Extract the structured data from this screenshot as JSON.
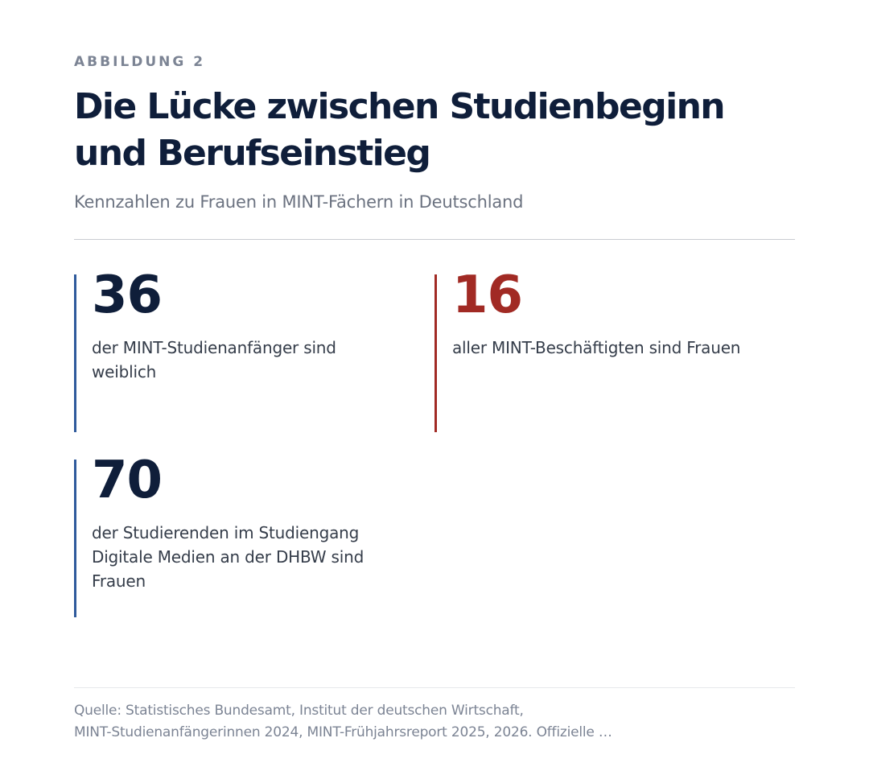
{
  "figure": {
    "eyebrow": "ABBILDUNG 2",
    "title": "Die Lücke zwischen Studienbeginn und Berufseinstieg",
    "subtitle": "Kennzahlen zu Frauen in MINT-Fächern in Deutschland"
  },
  "stats": [
    {
      "value": "36",
      "label": "der MINT-Studienanfänger sind weiblich",
      "accent_color": "#2f5a9c"
    },
    {
      "value": "16",
      "label": "aller MINT-Beschäftigten sind Frauen",
      "accent_color": "#a12a24"
    },
    {
      "value": "70",
      "label": "der Studierenden im Studiengang Digitale Medien an der DHBW sind Frauen",
      "accent_color": "#2f5a9c"
    }
  ],
  "source": {
    "line1": "Quelle: Statistisches Bundesamt, Institut der deutschen Wirtschaft,",
    "line2": "MINT-Studienanfängerinnen 2024, MINT-Frühjahrsreport 2025, 2026. Offizielle …"
  },
  "colors": {
    "title": "#0f1e3a",
    "muted": "#7c8494",
    "blue_accent": "#2f5a9c",
    "red_accent": "#a12a24"
  }
}
